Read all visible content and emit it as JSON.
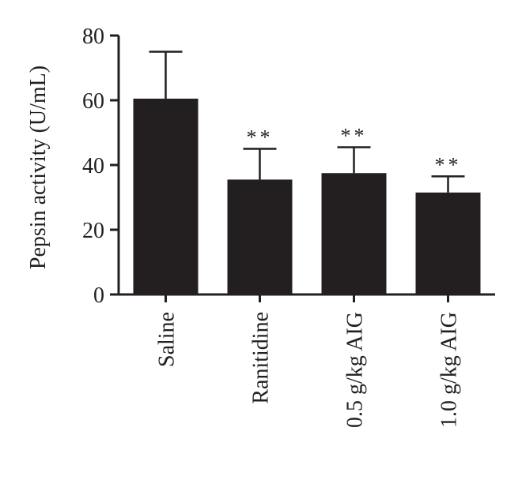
{
  "chart_data": {
    "type": "bar",
    "categories": [
      "Saline",
      "Ranitidine",
      "0.5 g/kg AIG",
      "1.0 g/kg AIG"
    ],
    "values": [
      60.5,
      35.5,
      37.5,
      31.5
    ],
    "error": [
      14.5,
      9.5,
      8.0,
      5.0
    ],
    "significance": [
      "",
      "**",
      "**",
      "**"
    ],
    "ylabel": "Pepsin activity (U/mL)",
    "xlabel": "",
    "ylim": [
      0,
      80
    ],
    "yticks": [
      0,
      20,
      40,
      60,
      80
    ],
    "bar_color": "#231f20",
    "axis_color": "#231f20",
    "grid": false
  }
}
